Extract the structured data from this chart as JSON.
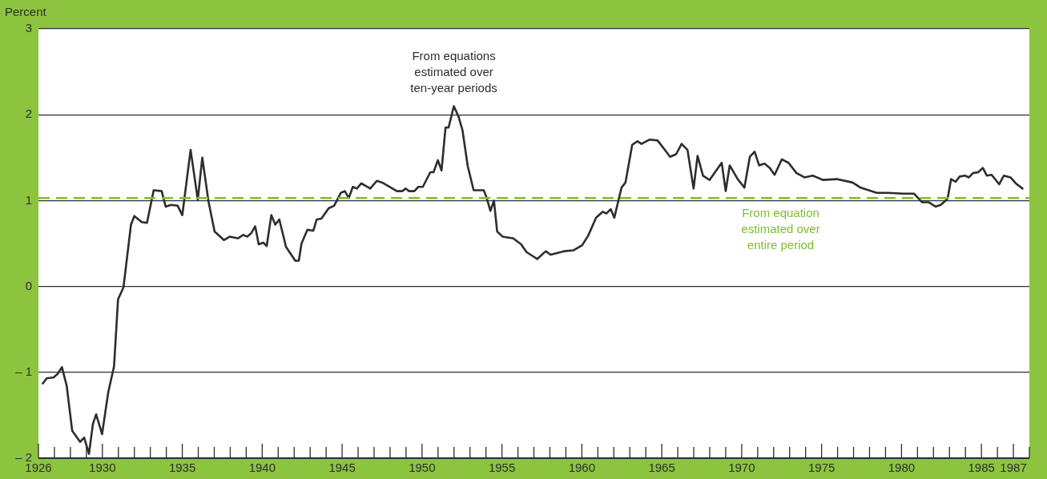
{
  "chart_data": {
    "type": "line",
    "ylabel": "Percent",
    "annotations": [
      {
        "text": "From equations estimated over ten-year periods",
        "x": 1951.99,
        "y": 2.1
      }
    ],
    "xlim": [
      1926,
      1988
    ],
    "ylim": [
      -2,
      3
    ],
    "xticks": [
      1926,
      {
        "value": 1927,
        "label": null
      },
      {
        "value": 1928,
        "label": null
      },
      {
        "value": 1929,
        "label": null
      },
      1930,
      {
        "value": 1931,
        "label": null
      },
      {
        "value": 1932,
        "label": null
      },
      {
        "value": 1933,
        "label": null
      },
      {
        "value": 1934,
        "label": null
      },
      1935,
      {
        "value": 1936,
        "label": null
      },
      {
        "value": 1937,
        "label": null
      },
      {
        "value": 1938,
        "label": null
      },
      {
        "value": 1939,
        "label": null
      },
      1940,
      {
        "value": 1941,
        "label": null
      },
      {
        "value": 1942,
        "label": null
      },
      {
        "value": 1943,
        "label": null
      },
      {
        "value": 1944,
        "label": null
      },
      1945,
      {
        "value": 1946,
        "label": null
      },
      {
        "value": 1947,
        "label": null
      },
      {
        "value": 1948,
        "label": null
      },
      {
        "value": 1949,
        "label": null
      },
      1950,
      {
        "value": 1951,
        "label": null
      },
      {
        "value": 1952,
        "label": null
      },
      {
        "value": 1953,
        "label": null
      },
      {
        "value": 1954,
        "label": null
      },
      1955,
      {
        "value": 1956,
        "label": null
      },
      {
        "value": 1957,
        "label": null
      },
      {
        "value": 1958,
        "label": null
      },
      {
        "value": 1959,
        "label": null
      },
      1960,
      {
        "value": 1961,
        "label": null
      },
      {
        "value": 1962,
        "label": null
      },
      {
        "value": 1963,
        "label": null
      },
      {
        "value": 1964,
        "label": null
      },
      1965,
      {
        "value": 1966,
        "label": null
      },
      {
        "value": 1967,
        "label": null
      },
      {
        "value": 1968,
        "label": null
      },
      {
        "value": 1969,
        "label": null
      },
      1970,
      {
        "value": 1971,
        "label": null
      },
      {
        "value": 1972,
        "label": null
      },
      {
        "value": 1973,
        "label": null
      },
      {
        "value": 1974,
        "label": null
      },
      1975,
      {
        "value": 1976,
        "label": null
      },
      {
        "value": 1977,
        "label": null
      },
      {
        "value": 1978,
        "label": null
      },
      {
        "value": 1979,
        "label": null
      },
      1980,
      {
        "value": 1981,
        "label": null
      },
      {
        "value": 1982,
        "label": null
      },
      {
        "value": 1983,
        "label": null
      },
      {
        "value": 1984,
        "label": null
      },
      1985,
      {
        "value": 1986,
        "label": null
      },
      1987,
      {
        "value": 1988,
        "label": null
      }
    ],
    "yticks": [
      {
        "value": -2,
        "label": "– 2"
      },
      {
        "value": -1,
        "label": "– 1"
      },
      0,
      1,
      2,
      3
    ],
    "grid": "y",
    "legend": false,
    "ref_lines": [
      {
        "axis": "y",
        "value": 1.03,
        "label": "From equation estimated over entire period",
        "color": "#7cbf2f",
        "line_style": "dashed"
      }
    ],
    "series": [
      {
        "color": "#2d2d2d",
        "x": [
          1926.27,
          1926.52,
          1926.94,
          1927.19,
          1927.47,
          1927.77,
          1928.11,
          1928.61,
          1928.86,
          1929.16,
          1929.41,
          1929.61,
          1929.98,
          1930.37,
          1930.73,
          1930.98,
          1931.32,
          1931.79,
          1932.0,
          1932.46,
          1932.79,
          1933.21,
          1933.71,
          1933.96,
          1934.3,
          1934.71,
          1935.0,
          1935.52,
          1935.97,
          1936.25,
          1936.64,
          1937.02,
          1937.61,
          1937.98,
          1938.48,
          1938.81,
          1939.06,
          1939.31,
          1939.56,
          1939.78,
          1940.07,
          1940.28,
          1940.57,
          1940.82,
          1941.07,
          1941.49,
          1942.07,
          1942.29,
          1942.46,
          1942.83,
          1943.2,
          1943.41,
          1943.7,
          1944.16,
          1944.5,
          1944.92,
          1945.17,
          1945.42,
          1945.67,
          1945.92,
          1946.2,
          1946.76,
          1947.17,
          1947.51,
          1948.43,
          1948.76,
          1948.98,
          1949.18,
          1949.52,
          1949.77,
          1950.05,
          1950.52,
          1950.72,
          1950.99,
          1951.22,
          1951.47,
          1951.66,
          1951.99,
          1952.28,
          1952.53,
          1952.86,
          1953.23,
          1953.86,
          1954.03,
          1954.28,
          1954.5,
          1954.7,
          1955.04,
          1955.7,
          1956.2,
          1956.54,
          1956.87,
          1957.21,
          1957.74,
          1958.04,
          1958.88,
          1959.47,
          1960.02,
          1960.39,
          1960.89,
          1961.31,
          1961.53,
          1961.81,
          1962.03,
          1962.48,
          1962.73,
          1963.15,
          1963.48,
          1963.73,
          1964.23,
          1964.74,
          1965.15,
          1965.52,
          1965.9,
          1966.24,
          1966.61,
          1966.99,
          1967.24,
          1967.58,
          1967.99,
          1968.33,
          1968.75,
          1969.0,
          1969.25,
          1969.75,
          1970.17,
          1970.51,
          1970.81,
          1971.09,
          1971.43,
          1971.76,
          1972.06,
          1972.51,
          1972.93,
          1973.43,
          1973.93,
          1974.44,
          1975.1,
          1975.94,
          1976.94,
          1977.45,
          1978.45,
          1979.12,
          1980.12,
          1980.79,
          1981.29,
          1981.71,
          1982.13,
          1982.46,
          1982.88,
          1983.1,
          1983.39,
          1983.64,
          1983.97,
          1984.22,
          1984.47,
          1984.8,
          1985.09,
          1985.34,
          1985.64,
          1986.11,
          1986.4,
          1986.82,
          1987.15,
          1987.57
        ],
        "values": [
          -1.13,
          -1.07,
          -1.06,
          -1.02,
          -0.94,
          -1.16,
          -1.68,
          -1.81,
          -1.76,
          -1.95,
          -1.6,
          -1.49,
          -1.72,
          -1.23,
          -0.93,
          -0.15,
          -0.01,
          0.72,
          0.82,
          0.75,
          0.74,
          1.12,
          1.11,
          0.93,
          0.95,
          0.94,
          0.83,
          1.59,
          1.01,
          1.5,
          0.99,
          0.64,
          0.54,
          0.58,
          0.56,
          0.6,
          0.58,
          0.62,
          0.7,
          0.49,
          0.51,
          0.47,
          0.83,
          0.72,
          0.78,
          0.46,
          0.3,
          0.3,
          0.5,
          0.66,
          0.65,
          0.78,
          0.79,
          0.91,
          0.94,
          1.09,
          1.11,
          1.03,
          1.16,
          1.14,
          1.2,
          1.14,
          1.23,
          1.21,
          1.11,
          1.11,
          1.14,
          1.11,
          1.11,
          1.16,
          1.16,
          1.33,
          1.33,
          1.47,
          1.35,
          1.85,
          1.85,
          2.1,
          1.98,
          1.82,
          1.4,
          1.12,
          1.12,
          1.04,
          0.88,
          1.0,
          0.64,
          0.58,
          0.56,
          0.49,
          0.4,
          0.36,
          0.32,
          0.41,
          0.37,
          0.41,
          0.42,
          0.48,
          0.59,
          0.8,
          0.87,
          0.85,
          0.9,
          0.8,
          1.15,
          1.21,
          1.65,
          1.69,
          1.66,
          1.71,
          1.7,
          1.6,
          1.51,
          1.54,
          1.66,
          1.59,
          1.14,
          1.52,
          1.29,
          1.24,
          1.33,
          1.44,
          1.11,
          1.41,
          1.25,
          1.15,
          1.51,
          1.57,
          1.41,
          1.43,
          1.38,
          1.3,
          1.48,
          1.44,
          1.32,
          1.27,
          1.29,
          1.24,
          1.25,
          1.21,
          1.15,
          1.09,
          1.09,
          1.08,
          1.08,
          0.98,
          0.98,
          0.93,
          0.95,
          1.02,
          1.25,
          1.22,
          1.28,
          1.29,
          1.27,
          1.32,
          1.33,
          1.38,
          1.29,
          1.3,
          1.19,
          1.29,
          1.27,
          1.2,
          1.14
        ]
      }
    ]
  }
}
